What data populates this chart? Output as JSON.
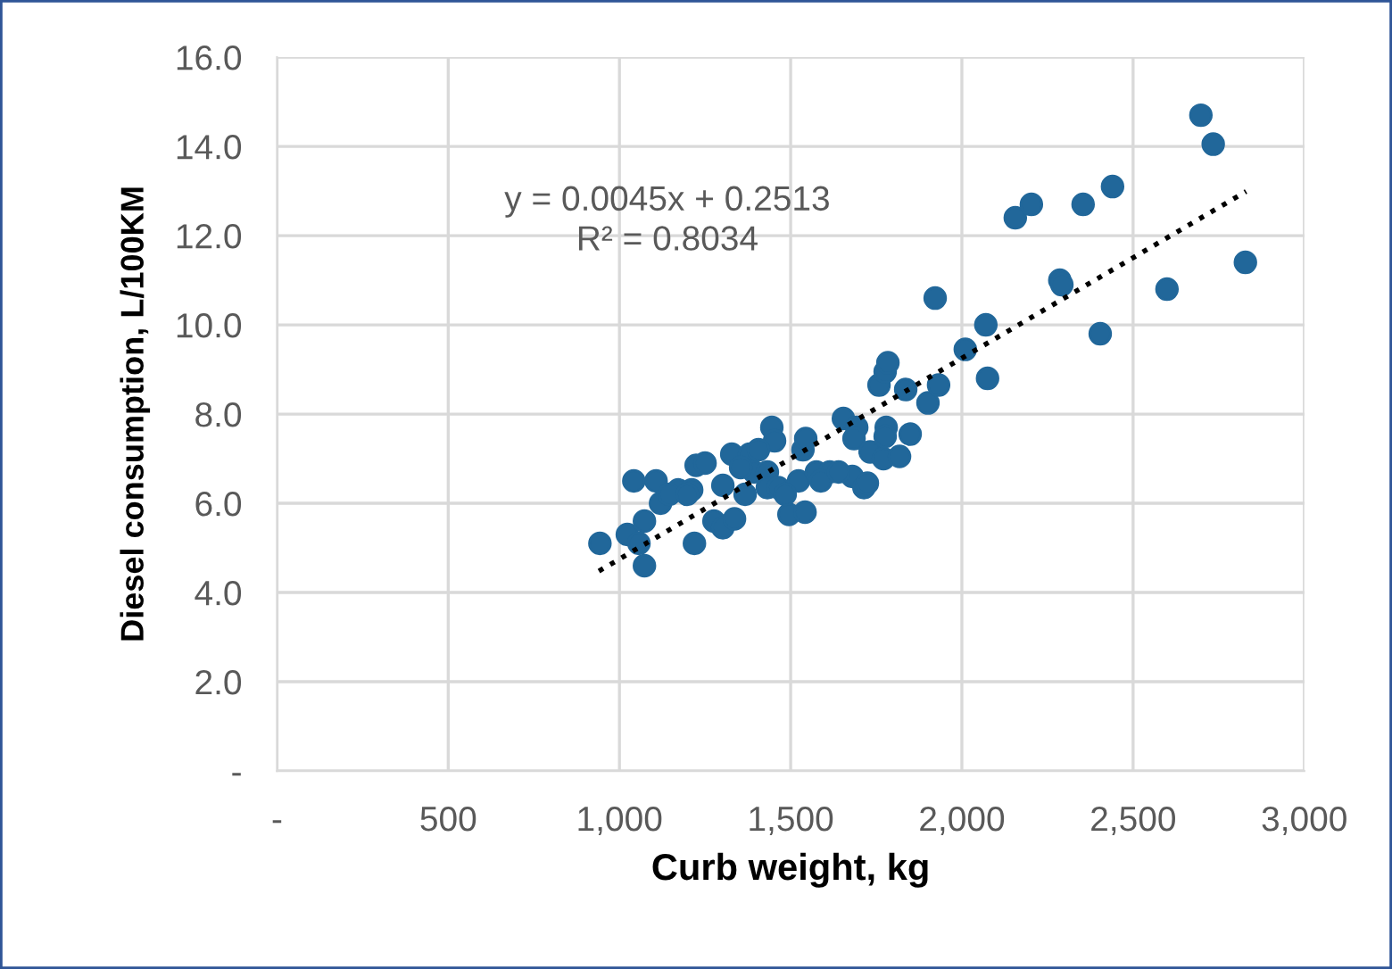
{
  "chart_data": {
    "type": "scatter",
    "xlabel": "Curb weight, kg",
    "ylabel": "Diesel consumption, L/100KM",
    "annotations": [
      "y = 0.0045x + 0.2513\nR² = 0.8034"
    ],
    "xlim": [
      0,
      3000
    ],
    "ylim": [
      0,
      16
    ],
    "xticks": [
      {
        "value": 0,
        "label": "-"
      },
      500,
      {
        "value": 1000,
        "label": "1,000"
      },
      {
        "value": 1500,
        "label": "1,500"
      },
      {
        "value": 2000,
        "label": "2,000"
      },
      {
        "value": 2500,
        "label": "2,500"
      },
      {
        "value": 3000,
        "label": "3,000"
      }
    ],
    "yticks": [
      {
        "value": 0,
        "label": "-"
      },
      {
        "value": 2,
        "label": "2.0"
      },
      {
        "value": 4,
        "label": "4.0"
      },
      {
        "value": 6,
        "label": "6.0"
      },
      {
        "value": 8,
        "label": "8.0"
      },
      {
        "value": 10,
        "label": "10.0"
      },
      {
        "value": 12,
        "label": "12.0"
      },
      {
        "value": 14,
        "label": "14.0"
      },
      {
        "value": 16,
        "label": "16.0"
      }
    ],
    "grid": true,
    "legend": false,
    "marker": "circle",
    "series": [
      {
        "color": "#21679a",
        "x": [
          943,
          1023,
          1042,
          1073,
          1073,
          1057,
          1107,
          1120,
          1172,
          1224,
          1250,
          1219,
          1211,
          1276,
          1302,
          1336,
          1328,
          1302,
          1380,
          1393,
          1367,
          1432,
          1445,
          1453,
          1432,
          1464,
          1495,
          1542,
          1536,
          1544,
          1523,
          1575,
          1614,
          1654,
          1693,
          1685,
          1680,
          1714,
          1724,
          1732,
          1771,
          1779,
          1776,
          1818,
          1849,
          1758,
          1776,
          1784,
          1836,
          1901,
          1932,
          1922,
          2010,
          2070,
          2075,
          2156,
          2203,
          2286,
          2292,
          2354,
          2404,
          2440,
          2599,
          2698,
          2734,
          2828,
          1146,
          1198,
          1406,
          1484,
          1588,
          1640,
          1354
        ],
        "values": [
          5.1,
          5.3,
          6.5,
          4.6,
          5.6,
          5.1,
          6.5,
          6.0,
          6.3,
          6.85,
          6.9,
          5.1,
          6.3,
          5.6,
          5.45,
          5.65,
          7.1,
          6.4,
          7.1,
          6.7,
          6.2,
          6.7,
          7.7,
          7.4,
          6.35,
          6.35,
          5.75,
          5.8,
          7.2,
          7.45,
          6.5,
          6.7,
          6.7,
          7.9,
          7.7,
          7.45,
          6.6,
          6.35,
          6.45,
          7.15,
          7.0,
          7.7,
          7.5,
          7.05,
          7.55,
          8.65,
          8.95,
          9.15,
          8.55,
          8.25,
          8.65,
          10.6,
          9.45,
          10.0,
          8.8,
          12.4,
          12.7,
          11.0,
          10.9,
          12.7,
          9.8,
          13.1,
          10.8,
          14.7,
          14.05,
          11.4,
          6.2,
          6.2,
          7.2,
          6.2,
          6.5,
          6.7,
          6.8
        ]
      },
      {
        "type": "line",
        "color": "#000000",
        "line_style": "dotted",
        "marker": "none",
        "x": [
          940,
          2830
        ],
        "values": [
          4.48,
          12.99
        ]
      }
    ]
  }
}
